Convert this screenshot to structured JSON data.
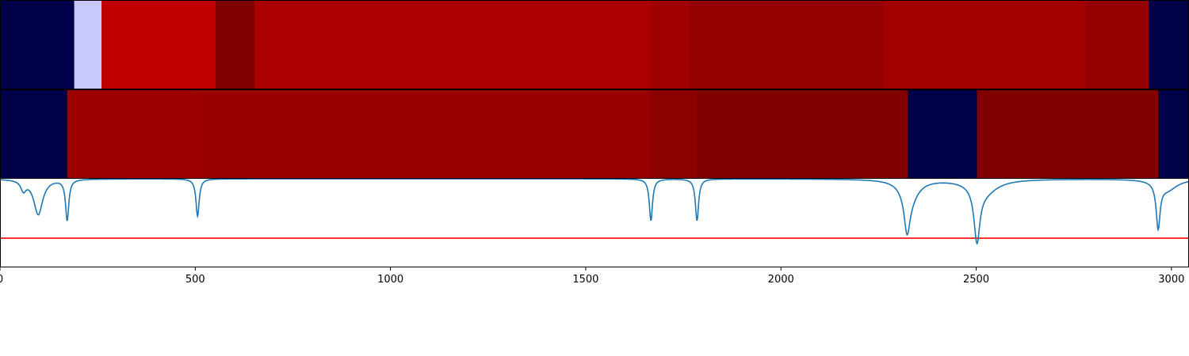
{
  "chart_data": [
    {
      "type": "heatmap",
      "row": "top",
      "segments": [
        {
          "start": 0,
          "end": 190,
          "color": "#000048"
        },
        {
          "start": 190,
          "end": 260,
          "color": "#c8c8ff"
        },
        {
          "start": 260,
          "end": 552,
          "color": "#c00000"
        },
        {
          "start": 552,
          "end": 652,
          "color": "#800000"
        },
        {
          "start": 652,
          "end": 1665,
          "color": "#aa0000"
        },
        {
          "start": 1665,
          "end": 1765,
          "color": "#a00000"
        },
        {
          "start": 1765,
          "end": 2262,
          "color": "#940000"
        },
        {
          "start": 2262,
          "end": 2780,
          "color": "#a30000"
        },
        {
          "start": 2780,
          "end": 2942,
          "color": "#930000"
        },
        {
          "start": 2942,
          "end": 3045,
          "color": "#000048"
        }
      ]
    },
    {
      "type": "heatmap",
      "row": "middle",
      "segments": [
        {
          "start": 0,
          "end": 172,
          "color": "#000048"
        },
        {
          "start": 172,
          "end": 506,
          "color": "#9e0000"
        },
        {
          "start": 506,
          "end": 1665,
          "color": "#990000"
        },
        {
          "start": 1665,
          "end": 1785,
          "color": "#8b0000"
        },
        {
          "start": 1785,
          "end": 2325,
          "color": "#800000"
        },
        {
          "start": 2325,
          "end": 2502,
          "color": "#000048"
        },
        {
          "start": 2502,
          "end": 2966,
          "color": "#800000"
        },
        {
          "start": 2966,
          "end": 3045,
          "color": "#000048"
        }
      ]
    },
    {
      "type": "line",
      "row": "bottom",
      "series": [
        {
          "color": "#1f77b4",
          "baseline": 1.0,
          "dips": [
            {
              "center": 60,
              "depth": 0.11,
              "width": 8
            },
            {
              "center": 98,
              "depth": 0.4,
              "width": 14
            },
            {
              "center": 172,
              "depth": 0.46,
              "width": 5
            },
            {
              "center": 506,
              "depth": 0.42,
              "width": 5
            },
            {
              "center": 1667,
              "depth": 0.47,
              "width": 5
            },
            {
              "center": 1785,
              "depth": 0.47,
              "width": 5
            },
            {
              "center": 2323,
              "depth": 0.42,
              "width": 9
            },
            {
              "center": 2330,
              "depth": 0.22,
              "width": 25
            },
            {
              "center": 2502,
              "depth": 0.6,
              "width": 9
            },
            {
              "center": 2520,
              "depth": 0.15,
              "width": 40
            },
            {
              "center": 2966,
              "depth": 0.5,
              "width": 6
            },
            {
              "center": 2990,
              "depth": 0.12,
              "width": 30
            }
          ]
        }
      ],
      "threshold": {
        "value": 0.33,
        "color": "#ff0000"
      },
      "ylim": [
        0,
        1.0
      ]
    }
  ],
  "x_axis": {
    "xlim": [
      0,
      3045
    ],
    "ticks": [
      0,
      500,
      1000,
      1500,
      2000,
      2500,
      3000
    ],
    "tick_labels": [
      "0",
      "500",
      "1000",
      "1500",
      "2000",
      "2500",
      "3000"
    ]
  }
}
